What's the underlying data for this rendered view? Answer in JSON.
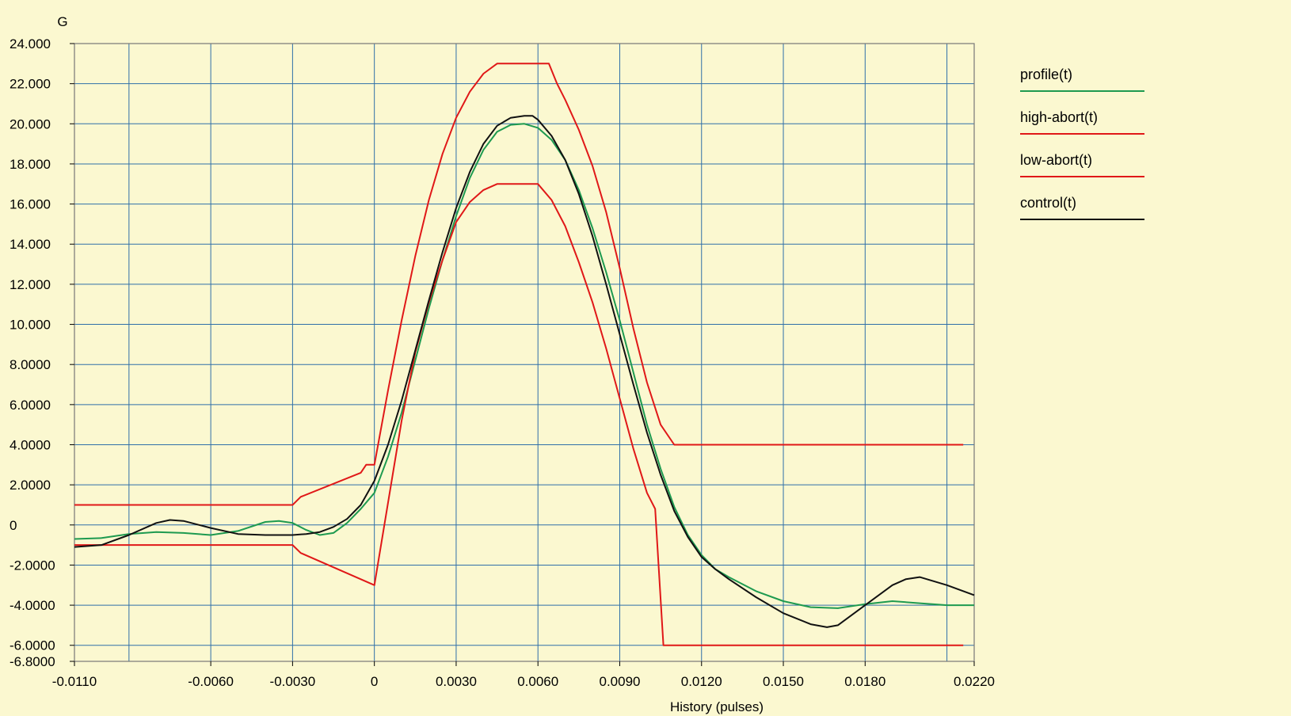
{
  "colors": {
    "background": "#fbf8d0",
    "grid": "#2f6fa8",
    "frame": "#777777",
    "profile": "#1e9a50",
    "high_abort": "#e01818",
    "low_abort": "#e01818",
    "control": "#111111"
  },
  "chart_data": {
    "type": "line",
    "title": "",
    "ylabel": "G",
    "xlabel": "History (pulses)",
    "xlim": [
      -0.011,
      0.022
    ],
    "ylim": [
      -6.8,
      24
    ],
    "grid": true,
    "legend_position": "right",
    "x_grid_values": [
      -0.009,
      -0.006,
      -0.003,
      0,
      0.003,
      0.006,
      0.009,
      0.012,
      0.015,
      0.018,
      0.021
    ],
    "x_ticks": [
      {
        "value": -0.011,
        "label": "-0.0110"
      },
      {
        "value": -0.006,
        "label": "-0.0060"
      },
      {
        "value": -0.003,
        "label": "-0.0030"
      },
      {
        "value": 0,
        "label": "0"
      },
      {
        "value": 0.003,
        "label": "0.0030"
      },
      {
        "value": 0.006,
        "label": "0.0060"
      },
      {
        "value": 0.009,
        "label": "0.0090"
      },
      {
        "value": 0.012,
        "label": "0.0120"
      },
      {
        "value": 0.015,
        "label": "0.0150"
      },
      {
        "value": 0.018,
        "label": "0.0180"
      },
      {
        "value": 0.022,
        "label": "0.0220"
      }
    ],
    "y_ticks": [
      {
        "value": 24,
        "label": "24.000"
      },
      {
        "value": 22,
        "label": "22.000"
      },
      {
        "value": 20,
        "label": "20.000"
      },
      {
        "value": 18,
        "label": "18.000"
      },
      {
        "value": 16,
        "label": "16.000"
      },
      {
        "value": 14,
        "label": "14.000"
      },
      {
        "value": 12,
        "label": "12.000"
      },
      {
        "value": 10,
        "label": "10.000"
      },
      {
        "value": 8,
        "label": "8.0000"
      },
      {
        "value": 6,
        "label": "6.0000"
      },
      {
        "value": 4,
        "label": "4.0000"
      },
      {
        "value": 2,
        "label": "2.0000"
      },
      {
        "value": 0,
        "label": "0"
      },
      {
        "value": -2,
        "label": "-2.0000"
      },
      {
        "value": -4,
        "label": "-4.0000"
      },
      {
        "value": -6,
        "label": "-6.0000"
      },
      {
        "value": -6.8,
        "label": "-6.8000"
      }
    ],
    "series": [
      {
        "name": "profile(t)",
        "color": "#1e9a50",
        "x": [
          -0.011,
          -0.01,
          -0.009,
          -0.008,
          -0.007,
          -0.006,
          -0.005,
          -0.004,
          -0.0035,
          -0.003,
          -0.0025,
          -0.002,
          -0.0015,
          -0.001,
          -0.0005,
          0,
          0.0005,
          0.001,
          0.0015,
          0.002,
          0.0025,
          0.003,
          0.0035,
          0.004,
          0.0045,
          0.005,
          0.0055,
          0.006,
          0.0065,
          0.007,
          0.0075,
          0.008,
          0.0085,
          0.009,
          0.0095,
          0.01,
          0.0105,
          0.011,
          0.0115,
          0.012,
          0.0125,
          0.013,
          0.014,
          0.015,
          0.016,
          0.017,
          0.018,
          0.019,
          0.02,
          0.021,
          0.022
        ],
        "y": [
          -0.7,
          -0.65,
          -0.45,
          -0.35,
          -0.4,
          -0.5,
          -0.3,
          0.15,
          0.2,
          0.1,
          -0.25,
          -0.5,
          -0.4,
          0.1,
          0.8,
          1.6,
          3.4,
          5.6,
          8.2,
          10.8,
          13.2,
          15.4,
          17.3,
          18.7,
          19.6,
          19.95,
          20.0,
          19.8,
          19.2,
          18.2,
          16.7,
          14.8,
          12.6,
          10.2,
          7.6,
          5.0,
          2.8,
          0.9,
          -0.5,
          -1.5,
          -2.2,
          -2.6,
          -3.3,
          -3.8,
          -4.1,
          -4.15,
          -3.95,
          -3.8,
          -3.9,
          -4.0,
          -4.0
        ]
      },
      {
        "name": "high-abort(t)",
        "color": "#e01818",
        "x": [
          -0.011,
          -0.003,
          -0.0027,
          -0.0005,
          -0.0003,
          0,
          0.0005,
          0.001,
          0.0015,
          0.002,
          0.0025,
          0.003,
          0.0035,
          0.004,
          0.0045,
          0.005,
          0.0064,
          0.0067,
          0.007,
          0.0075,
          0.008,
          0.0085,
          0.009,
          0.0095,
          0.01,
          0.0105,
          0.011,
          0.0216
        ],
        "y": [
          1,
          1,
          1.4,
          2.6,
          3,
          3,
          6.7,
          10.2,
          13.4,
          16.2,
          18.5,
          20.3,
          21.6,
          22.5,
          23,
          23,
          23,
          22,
          21.2,
          19.7,
          17.9,
          15.6,
          12.8,
          9.8,
          7.1,
          5.0,
          4,
          4
        ]
      },
      {
        "name": "low-abort(t)",
        "color": "#e01818",
        "x": [
          -0.011,
          -0.003,
          -0.0027,
          0,
          0.0005,
          0.001,
          0.0015,
          0.002,
          0.0025,
          0.003,
          0.0035,
          0.004,
          0.0045,
          0.005,
          0.006,
          0.0065,
          0.007,
          0.0075,
          0.008,
          0.0085,
          0.009,
          0.0095,
          0.01,
          0.0103,
          0.0106,
          0.0216
        ],
        "y": [
          -1,
          -1,
          -1.4,
          -3,
          1.1,
          5.2,
          8.6,
          11.1,
          13.2,
          15.1,
          16.1,
          16.7,
          17,
          17,
          17,
          16.2,
          14.9,
          13.1,
          11.1,
          8.8,
          6.3,
          3.8,
          1.6,
          0.8,
          -6,
          -6
        ]
      },
      {
        "name": "control(t)",
        "color": "#111111",
        "x": [
          -0.011,
          -0.01,
          -0.009,
          -0.008,
          -0.0075,
          -0.007,
          -0.006,
          -0.005,
          -0.004,
          -0.003,
          -0.0025,
          -0.002,
          -0.0015,
          -0.001,
          -0.0005,
          0,
          0.0005,
          0.001,
          0.0015,
          0.002,
          0.0025,
          0.003,
          0.0035,
          0.004,
          0.0045,
          0.005,
          0.0055,
          0.0058,
          0.006,
          0.0065,
          0.007,
          0.0075,
          0.008,
          0.0085,
          0.009,
          0.0095,
          0.01,
          0.0105,
          0.011,
          0.0115,
          0.012,
          0.0125,
          0.013,
          0.014,
          0.015,
          0.016,
          0.0166,
          0.017,
          0.018,
          0.019,
          0.0195,
          0.02,
          0.021,
          0.022
        ],
        "y": [
          -1.1,
          -1.0,
          -0.5,
          0.1,
          0.25,
          0.2,
          -0.15,
          -0.45,
          -0.5,
          -0.5,
          -0.45,
          -0.35,
          -0.1,
          0.3,
          1.0,
          2.2,
          4.0,
          6.2,
          8.7,
          11.2,
          13.6,
          15.8,
          17.6,
          19.0,
          19.9,
          20.3,
          20.4,
          20.4,
          20.2,
          19.4,
          18.2,
          16.5,
          14.4,
          12.0,
          9.5,
          7.0,
          4.6,
          2.5,
          0.7,
          -0.6,
          -1.6,
          -2.2,
          -2.7,
          -3.6,
          -4.4,
          -4.95,
          -5.1,
          -5.0,
          -4.0,
          -3.0,
          -2.7,
          -2.6,
          -3.0,
          -3.5
        ]
      }
    ]
  }
}
